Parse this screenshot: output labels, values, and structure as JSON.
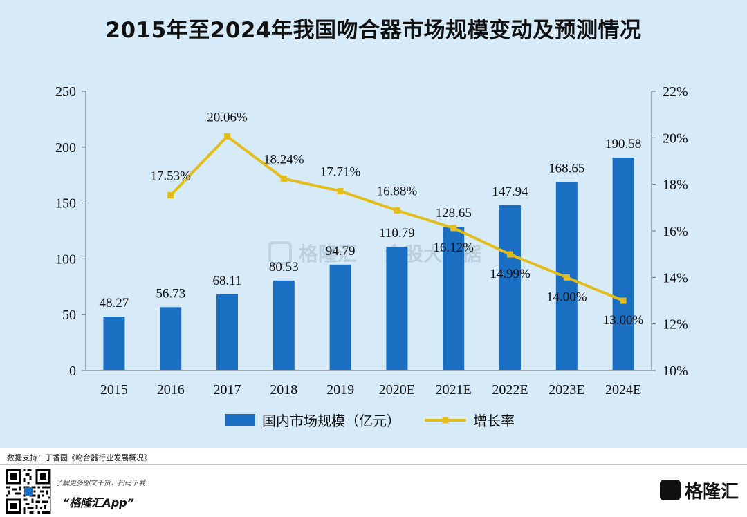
{
  "title": "2015年至2024年我国吻合器市场规模变动及预测情况",
  "chart_data": {
    "type": "bar+line",
    "categories": [
      "2015",
      "2016",
      "2017",
      "2018",
      "2019",
      "2020E",
      "2021E",
      "2022E",
      "2023E",
      "2024E"
    ],
    "series": [
      {
        "name": "国内市场规模（亿元）",
        "type": "bar",
        "axis": "left",
        "color": "#1b6fc2",
        "values": [
          48.27,
          56.73,
          68.11,
          80.53,
          94.79,
          110.79,
          128.65,
          147.94,
          168.65,
          190.58
        ],
        "labels": [
          "48.27",
          "56.73",
          "68.11",
          "80.53",
          "94.79",
          "110.79",
          "128.65",
          "147.94",
          "168.65",
          "190.58"
        ]
      },
      {
        "name": "增长率",
        "type": "line",
        "axis": "right",
        "color": "#e3bd1a",
        "values": [
          null,
          17.53,
          20.06,
          18.24,
          17.71,
          16.88,
          16.12,
          14.99,
          14.0,
          13.0
        ],
        "labels": [
          null,
          "17.53%",
          "20.06%",
          "18.24%",
          "17.71%",
          "16.88%",
          "16.12%",
          "14.99%",
          "14.00%",
          "13.00%"
        ]
      }
    ],
    "y_left": {
      "range": [
        0,
        250
      ],
      "ticks": [
        "0",
        "50",
        "100",
        "150",
        "200",
        "250"
      ]
    },
    "y_right": {
      "range": [
        10,
        22
      ],
      "ticks": [
        "10%",
        "12%",
        "14%",
        "16%",
        "18%",
        "20%",
        "22%"
      ]
    },
    "legend_position": "bottom-center",
    "grid": false
  },
  "watermark": {
    "brand": "格隆汇",
    "partner": "金股大数据"
  },
  "footer": {
    "source": "数据支持：丁香园《吻合器行业发展概况》",
    "promo": "了解更多图文干货，扫码下载",
    "app_name": "“格隆汇App”",
    "brand": "格隆汇"
  }
}
